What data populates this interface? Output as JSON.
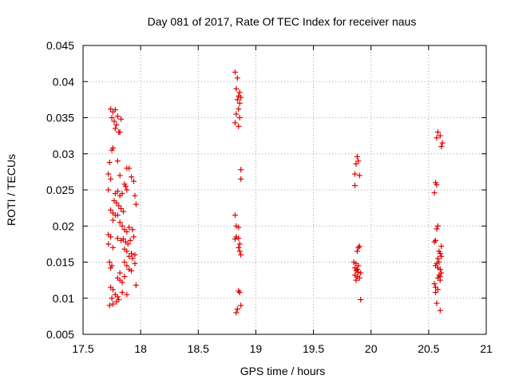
{
  "chart_data": {
    "type": "scatter",
    "title": "Day 081 of 2017, Rate Of TEC Index for receiver naus",
    "xlabel": "GPS time / hours",
    "ylabel": "ROTI / TECUs",
    "xlim": [
      17.5,
      21
    ],
    "ylim": [
      0.005,
      0.045
    ],
    "grid": true,
    "marker": "plus",
    "color": "#e00000",
    "x_ticks": [
      17.5,
      18,
      18.5,
      19,
      19.5,
      20,
      20.5,
      21
    ],
    "x_tick_labels": [
      "17.5",
      "18",
      "18.5",
      "19",
      "19.5",
      "20",
      "20.5",
      "21"
    ],
    "y_ticks": [
      0.005,
      0.01,
      0.015,
      0.02,
      0.025,
      0.03,
      0.035,
      0.04,
      0.045
    ],
    "y_tick_labels": [
      "0.005",
      "0.01",
      "0.015",
      "0.02",
      "0.025",
      "0.03",
      "0.035",
      "0.04",
      "0.045"
    ],
    "series": [
      {
        "name": "ROTI",
        "points": [
          [
            17.74,
            0.0362
          ],
          [
            17.76,
            0.0358
          ],
          [
            17.78,
            0.0361
          ],
          [
            17.75,
            0.035
          ],
          [
            17.77,
            0.0345
          ],
          [
            17.79,
            0.034
          ],
          [
            17.8,
            0.0352
          ],
          [
            17.83,
            0.0348
          ],
          [
            17.78,
            0.0335
          ],
          [
            17.81,
            0.033
          ],
          [
            17.82,
            0.033
          ],
          [
            17.75,
            0.0305
          ],
          [
            17.76,
            0.0308
          ],
          [
            17.73,
            0.0288
          ],
          [
            17.8,
            0.029
          ],
          [
            17.72,
            0.0272
          ],
          [
            17.74,
            0.0265
          ],
          [
            17.82,
            0.027
          ],
          [
            17.88,
            0.028
          ],
          [
            17.9,
            0.028
          ],
          [
            17.92,
            0.0268
          ],
          [
            17.94,
            0.0262
          ],
          [
            17.86,
            0.0258
          ],
          [
            17.87,
            0.0255
          ],
          [
            17.72,
            0.025
          ],
          [
            17.78,
            0.0245
          ],
          [
            17.8,
            0.0248
          ],
          [
            17.82,
            0.0242
          ],
          [
            17.84,
            0.0245
          ],
          [
            17.88,
            0.025
          ],
          [
            17.95,
            0.0242
          ],
          [
            17.77,
            0.0235
          ],
          [
            17.79,
            0.0232
          ],
          [
            17.81,
            0.0228
          ],
          [
            17.83,
            0.0224
          ],
          [
            17.85,
            0.022
          ],
          [
            17.74,
            0.0222
          ],
          [
            17.76,
            0.0218
          ],
          [
            17.78,
            0.0215
          ],
          [
            17.8,
            0.0215
          ],
          [
            17.96,
            0.023
          ],
          [
            17.76,
            0.0208
          ],
          [
            17.82,
            0.0205
          ],
          [
            17.84,
            0.02
          ],
          [
            17.86,
            0.0195
          ],
          [
            17.88,
            0.0192
          ],
          [
            17.9,
            0.0198
          ],
          [
            17.93,
            0.0195
          ],
          [
            17.72,
            0.0188
          ],
          [
            17.74,
            0.0185
          ],
          [
            17.8,
            0.0183
          ],
          [
            17.83,
            0.018
          ],
          [
            17.85,
            0.0182
          ],
          [
            17.87,
            0.0178
          ],
          [
            17.89,
            0.0175
          ],
          [
            17.91,
            0.018
          ],
          [
            17.94,
            0.0185
          ],
          [
            17.72,
            0.0175
          ],
          [
            17.76,
            0.017
          ],
          [
            17.86,
            0.0168
          ],
          [
            17.88,
            0.0165
          ],
          [
            17.92,
            0.0162
          ],
          [
            17.95,
            0.016
          ],
          [
            17.9,
            0.0158
          ],
          [
            17.93,
            0.0155
          ],
          [
            17.73,
            0.015
          ],
          [
            17.75,
            0.0145
          ],
          [
            17.74,
            0.0142
          ],
          [
            17.86,
            0.015
          ],
          [
            17.88,
            0.0145
          ],
          [
            17.9,
            0.014
          ],
          [
            17.92,
            0.0138
          ],
          [
            17.95,
            0.0148
          ],
          [
            17.82,
            0.0135
          ],
          [
            17.8,
            0.0128
          ],
          [
            17.82,
            0.0125
          ],
          [
            17.84,
            0.0122
          ],
          [
            17.86,
            0.013
          ],
          [
            17.74,
            0.0115
          ],
          [
            17.76,
            0.0112
          ],
          [
            17.96,
            0.0118
          ],
          [
            17.78,
            0.0105
          ],
          [
            17.8,
            0.0102
          ],
          [
            17.81,
            0.0098
          ],
          [
            17.84,
            0.0108
          ],
          [
            17.88,
            0.0105
          ],
          [
            17.75,
            0.01
          ],
          [
            17.73,
            0.009
          ],
          [
            17.76,
            0.0092
          ],
          [
            17.79,
            0.0095
          ],
          [
            18.82,
            0.0413
          ],
          [
            18.84,
            0.0405
          ],
          [
            18.83,
            0.039
          ],
          [
            18.86,
            0.0385
          ],
          [
            18.85,
            0.038
          ],
          [
            18.87,
            0.0378
          ],
          [
            18.84,
            0.0375
          ],
          [
            18.86,
            0.037
          ],
          [
            18.85,
            0.0362
          ],
          [
            18.83,
            0.0355
          ],
          [
            18.86,
            0.035
          ],
          [
            18.82,
            0.0343
          ],
          [
            18.85,
            0.0338
          ],
          [
            18.87,
            0.0278
          ],
          [
            18.87,
            0.0265
          ],
          [
            18.82,
            0.0215
          ],
          [
            18.83,
            0.02
          ],
          [
            18.85,
            0.0198
          ],
          [
            18.83,
            0.0185
          ],
          [
            18.85,
            0.0183
          ],
          [
            18.82,
            0.0182
          ],
          [
            18.86,
            0.0175
          ],
          [
            18.85,
            0.017
          ],
          [
            18.86,
            0.0165
          ],
          [
            18.87,
            0.016
          ],
          [
            18.85,
            0.011
          ],
          [
            18.86,
            0.0108
          ],
          [
            18.87,
            0.009
          ],
          [
            18.84,
            0.0085
          ],
          [
            18.83,
            0.008
          ],
          [
            19.88,
            0.0296
          ],
          [
            19.89,
            0.029
          ],
          [
            19.87,
            0.0286
          ],
          [
            19.86,
            0.0272
          ],
          [
            19.9,
            0.027
          ],
          [
            19.86,
            0.0256
          ],
          [
            19.9,
            0.0172
          ],
          [
            19.89,
            0.017
          ],
          [
            19.88,
            0.0165
          ],
          [
            19.85,
            0.015
          ],
          [
            19.87,
            0.0148
          ],
          [
            19.89,
            0.0145
          ],
          [
            19.86,
            0.0142
          ],
          [
            19.88,
            0.014
          ],
          [
            19.87,
            0.0138
          ],
          [
            19.89,
            0.0136
          ],
          [
            19.91,
            0.0135
          ],
          [
            19.86,
            0.0132
          ],
          [
            19.88,
            0.013
          ],
          [
            19.9,
            0.0128
          ],
          [
            19.87,
            0.0125
          ],
          [
            19.91,
            0.0098
          ],
          [
            20.58,
            0.033
          ],
          [
            20.6,
            0.0325
          ],
          [
            20.57,
            0.0322
          ],
          [
            20.62,
            0.0315
          ],
          [
            20.61,
            0.031
          ],
          [
            20.56,
            0.026
          ],
          [
            20.57,
            0.0257
          ],
          [
            20.55,
            0.0246
          ],
          [
            20.58,
            0.02
          ],
          [
            20.57,
            0.0196
          ],
          [
            20.56,
            0.018
          ],
          [
            20.55,
            0.0178
          ],
          [
            20.61,
            0.0172
          ],
          [
            20.59,
            0.0165
          ],
          [
            20.6,
            0.0162
          ],
          [
            20.61,
            0.0158
          ],
          [
            20.58,
            0.0155
          ],
          [
            20.59,
            0.015
          ],
          [
            20.57,
            0.0148
          ],
          [
            20.56,
            0.0145
          ],
          [
            20.58,
            0.0142
          ],
          [
            20.6,
            0.014
          ],
          [
            20.61,
            0.0135
          ],
          [
            20.59,
            0.0132
          ],
          [
            20.6,
            0.013
          ],
          [
            20.58,
            0.0128
          ],
          [
            20.6,
            0.0125
          ],
          [
            20.55,
            0.012
          ],
          [
            20.56,
            0.0115
          ],
          [
            20.58,
            0.0112
          ],
          [
            20.56,
            0.0108
          ],
          [
            20.57,
            0.0093
          ],
          [
            20.6,
            0.0083
          ]
        ]
      }
    ]
  }
}
